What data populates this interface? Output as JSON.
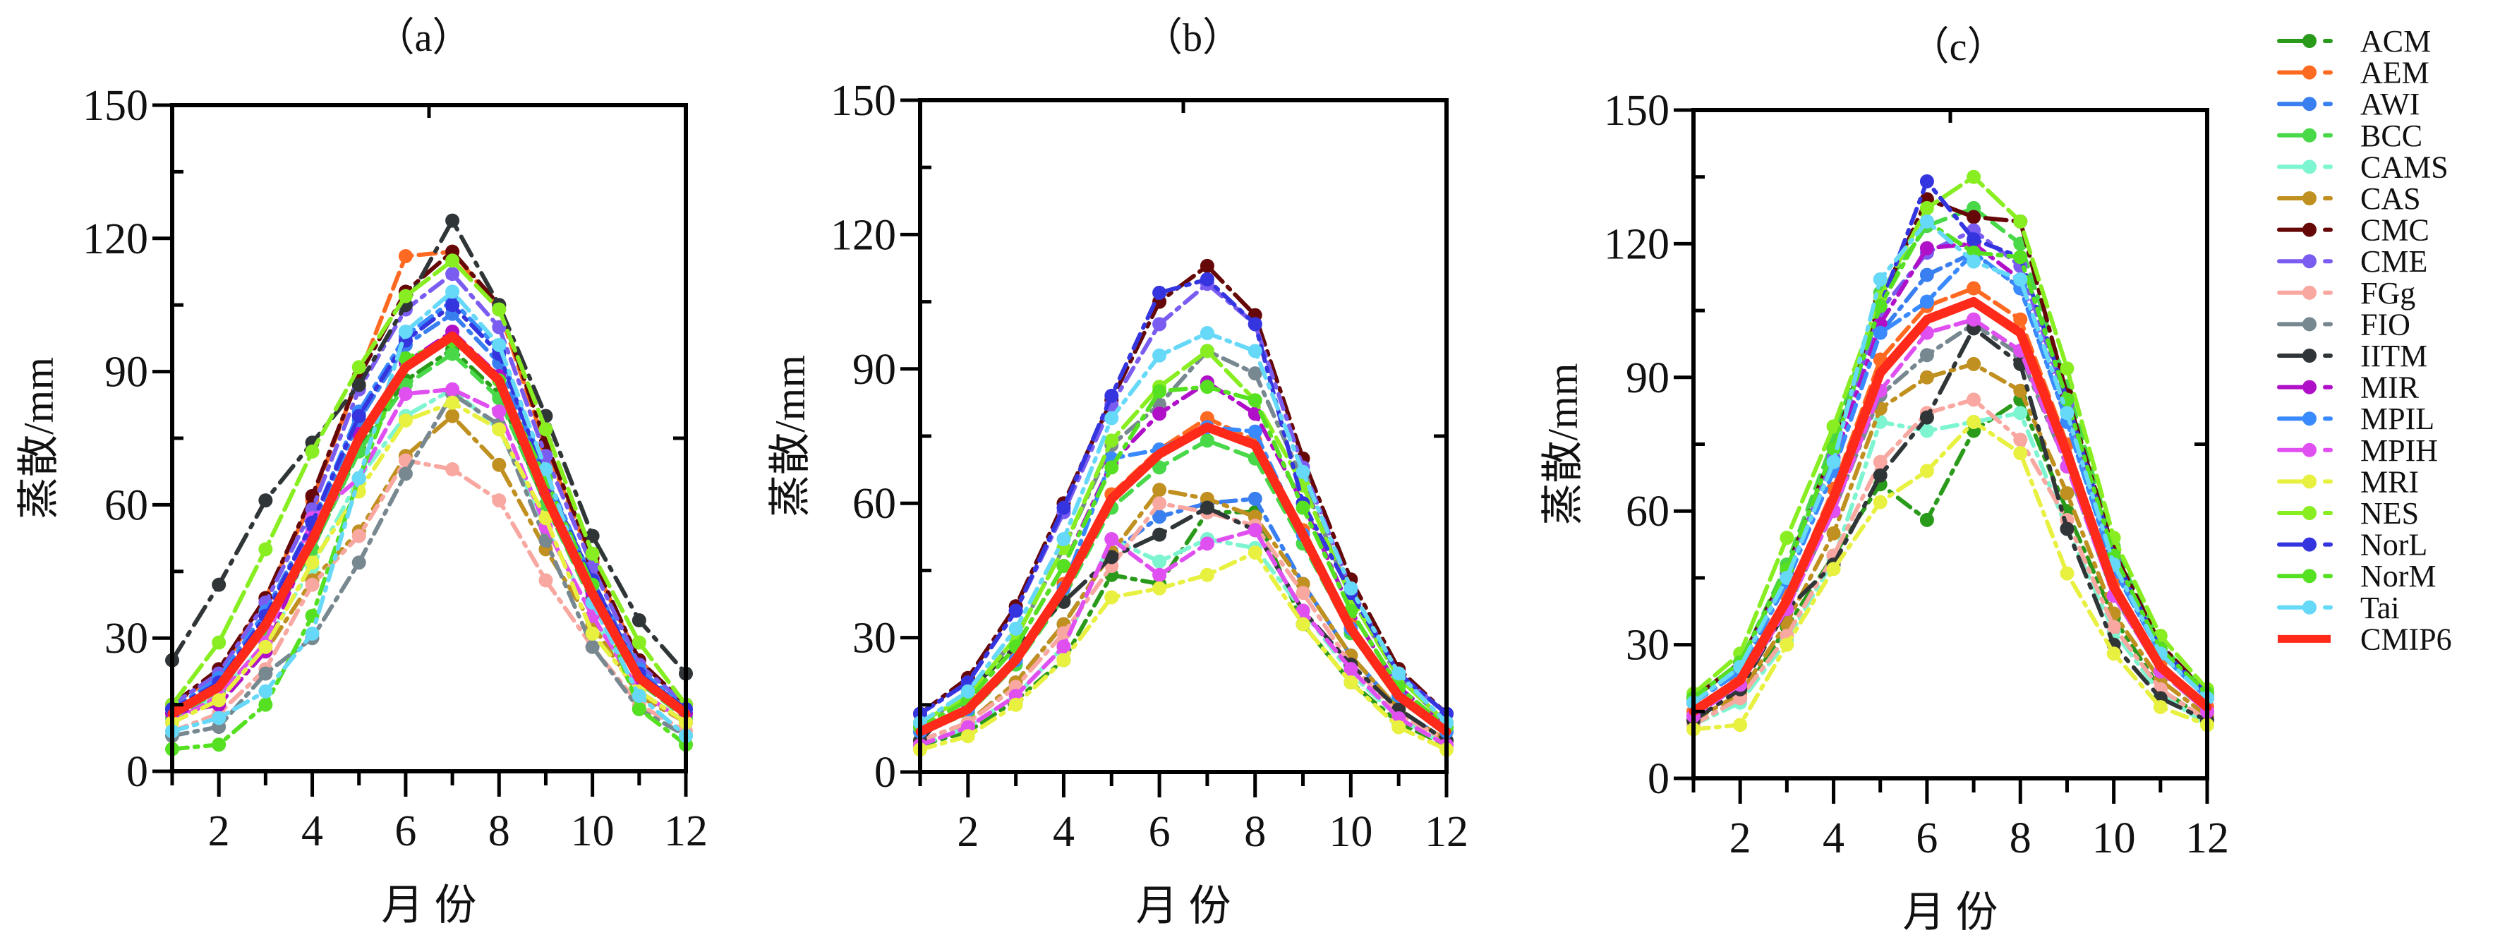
{
  "chart_data": [
    {
      "type": "line",
      "title": "（a）",
      "xlabel": "月 份",
      "ylabel": "蒸散/mm",
      "xlim": [
        1,
        12
      ],
      "ylim": [
        0,
        150
      ],
      "xticks": [
        "2",
        "4",
        "6",
        "8",
        "10",
        "12"
      ],
      "yticks": [
        "0",
        "30",
        "60",
        "90",
        "120",
        "150"
      ],
      "x": [
        1,
        2,
        3,
        4,
        5,
        6,
        7,
        8,
        9,
        10,
        11,
        12
      ],
      "series": [
        {
          "name": "ACM",
          "values": [
            13,
            18,
            32,
            50,
            73,
            88,
            95,
            85,
            60,
            39,
            20,
            13
          ]
        },
        {
          "name": "AEM",
          "values": [
            15,
            22,
            39,
            61,
            89,
            116,
            117,
            104,
            73,
            47,
            25,
            15
          ]
        },
        {
          "name": "AWI",
          "values": [
            14,
            20,
            35,
            55,
            79,
            96,
            103,
            92,
            65,
            42,
            22,
            14
          ]
        },
        {
          "name": "BCC",
          "values": [
            12,
            18,
            32,
            50,
            72,
            87,
            94,
            84,
            60,
            38,
            20,
            12
          ]
        },
        {
          "name": "CAMS",
          "values": [
            11,
            17,
            29,
            46,
            66,
            80,
            86,
            77,
            55,
            35,
            18,
            11
          ]
        },
        {
          "name": "CAS",
          "values": [
            11,
            16,
            27,
            43,
            54,
            71,
            80,
            69,
            50,
            33,
            17,
            11
          ]
        },
        {
          "name": "CMC",
          "values": [
            15,
            23,
            39,
            62,
            89,
            108,
            117,
            105,
            74,
            48,
            25,
            15
          ]
        },
        {
          "name": "CME",
          "values": [
            15,
            22,
            38,
            59,
            86,
            104,
            112,
            100,
            71,
            46,
            24,
            15
          ]
        },
        {
          "name": "FGg",
          "values": [
            9,
            13,
            23,
            42,
            53,
            70,
            68,
            61,
            43,
            28,
            15,
            9
          ]
        },
        {
          "name": "FIO",
          "values": [
            8,
            10,
            22,
            30,
            47,
            67,
            85,
            78,
            52,
            28,
            14,
            8
          ]
        },
        {
          "name": "IITM",
          "values": [
            25,
            42,
            61,
            74,
            87,
            105,
            124,
            105,
            80,
            53,
            34,
            22
          ]
        },
        {
          "name": "MIR",
          "values": [
            13,
            15,
            27,
            53,
            76,
            92,
            99,
            89,
            63,
            40,
            21,
            13
          ]
        },
        {
          "name": "MPIL",
          "values": [
            14,
            21,
            36,
            56,
            81,
            98,
            106,
            95,
            67,
            43,
            23,
            14
          ]
        },
        {
          "name": "MPIH",
          "values": [
            11,
            17,
            29,
            57,
            66,
            85,
            86,
            81,
            55,
            35,
            18,
            11
          ]
        },
        {
          "name": "MRI",
          "values": [
            11,
            16,
            28,
            47,
            63,
            79,
            83,
            77,
            57,
            31,
            18,
            11
          ]
        },
        {
          "name": "NES",
          "values": [
            15,
            29,
            50,
            72,
            91,
            107,
            115,
            104,
            77,
            49,
            29,
            15
          ]
        },
        {
          "name": "NorL",
          "values": [
            14,
            20,
            35,
            56,
            80,
            97,
            105,
            94,
            66,
            43,
            22,
            14
          ]
        },
        {
          "name": "NorM",
          "values": [
            5,
            6,
            15,
            35,
            66,
            93,
            97,
            88,
            66,
            42,
            14,
            6
          ]
        },
        {
          "name": "Tai",
          "values": [
            9,
            12,
            18,
            31,
            66,
            99,
            108,
            96,
            68,
            38,
            17,
            8
          ]
        },
        {
          "name": "CMIP6",
          "values": [
            13,
            19,
            33,
            52,
            75,
            91,
            98,
            88,
            62,
            40,
            21,
            13
          ]
        }
      ]
    },
    {
      "type": "line",
      "title": "（b）",
      "xlabel": "月 份",
      "ylabel": "蒸散/mm",
      "xlim": [
        1,
        12
      ],
      "ylim": [
        0,
        150
      ],
      "xticks": [
        "2",
        "4",
        "6",
        "8",
        "10",
        "12"
      ],
      "yticks": [
        "0",
        "30",
        "60",
        "90",
        "120",
        "150"
      ],
      "x": [
        1,
        2,
        3,
        4,
        5,
        6,
        7,
        8,
        9,
        10,
        11,
        12
      ],
      "series": [
        {
          "name": "ACM",
          "values": [
            6,
            9,
            16,
            25,
            44,
            42,
            58,
            58,
            33,
            20,
            11,
            6
          ]
        },
        {
          "name": "AEM",
          "values": [
            9,
            14,
            26,
            42,
            62,
            72,
            79,
            74,
            54,
            33,
            17,
            9
          ]
        },
        {
          "name": "AWI",
          "values": [
            7,
            11,
            20,
            33,
            49,
            57,
            60,
            61,
            42,
            26,
            14,
            7
          ]
        },
        {
          "name": "BCC",
          "values": [
            9,
            13,
            24,
            39,
            59,
            68,
            74,
            70,
            51,
            31,
            16,
            9
          ]
        },
        {
          "name": "CAMS",
          "values": [
            6,
            10,
            17,
            28,
            52,
            47,
            52,
            50,
            36,
            22,
            12,
            6
          ]
        },
        {
          "name": "CAS",
          "values": [
            7,
            11,
            20,
            33,
            49,
            63,
            61,
            57,
            42,
            26,
            14,
            7
          ]
        },
        {
          "name": "CMC",
          "values": [
            13,
            21,
            37,
            60,
            83,
            105,
            113,
            102,
            70,
            43,
            23,
            13
          ]
        },
        {
          "name": "CME",
          "values": [
            13,
            20,
            36,
            58,
            82,
            100,
            109,
            100,
            68,
            41,
            22,
            13
          ]
        },
        {
          "name": "FGg",
          "values": [
            7,
            11,
            19,
            31,
            46,
            60,
            58,
            55,
            40,
            24,
            13,
            7
          ]
        },
        {
          "name": "FIO",
          "values": [
            11,
            17,
            30,
            50,
            73,
            82,
            94,
            89,
            65,
            39,
            21,
            11
          ]
        },
        {
          "name": "IITM",
          "values": [
            7,
            18,
            28,
            38,
            48,
            53,
            59,
            54,
            36,
            24,
            14,
            7
          ]
        },
        {
          "name": "MIR",
          "values": [
            10,
            16,
            28,
            46,
            69,
            80,
            87,
            80,
            60,
            36,
            19,
            10
          ]
        },
        {
          "name": "MPIL",
          "values": [
            9,
            14,
            25,
            41,
            70,
            72,
            77,
            76,
            53,
            32,
            17,
            9
          ]
        },
        {
          "name": "MPIH",
          "values": [
            6,
            10,
            17,
            28,
            52,
            44,
            51,
            54,
            36,
            23,
            12,
            6
          ]
        },
        {
          "name": "MRI",
          "values": [
            5,
            8,
            15,
            25,
            39,
            41,
            44,
            49,
            33,
            20,
            10,
            5
          ]
        },
        {
          "name": "NES",
          "values": [
            11,
            17,
            30,
            50,
            74,
            86,
            94,
            83,
            64,
            39,
            21,
            11
          ]
        },
        {
          "name": "NorL",
          "values": [
            13,
            20,
            36,
            59,
            84,
            107,
            110,
            100,
            60,
            40,
            22,
            13
          ]
        },
        {
          "name": "NorM",
          "values": [
            10,
            16,
            28,
            46,
            68,
            85,
            86,
            83,
            59,
            36,
            19,
            10
          ]
        },
        {
          "name": "Tai",
          "values": [
            11,
            18,
            32,
            52,
            79,
            93,
            98,
            94,
            67,
            41,
            22,
            11
          ]
        },
        {
          "name": "CMIP6",
          "values": [
            9,
            14,
            25,
            41,
            61,
            71,
            77,
            73,
            53,
            32,
            17,
            9
          ]
        }
      ]
    },
    {
      "type": "line",
      "title": "（c）",
      "xlabel": "月 份",
      "ylabel": "蒸散/mm",
      "xlim": [
        1,
        12
      ],
      "ylim": [
        0,
        150
      ],
      "xticks": [
        "2",
        "4",
        "6",
        "8",
        "10",
        "12"
      ],
      "yticks": [
        "0",
        "30",
        "60",
        "90",
        "120",
        "150"
      ],
      "x": [
        1,
        2,
        3,
        4,
        5,
        6,
        7,
        8,
        9,
        10,
        11,
        12
      ],
      "series": [
        {
          "name": "ACM",
          "values": [
            12,
            18,
            34,
            50,
            66,
            58,
            78,
            85,
            60,
            36,
            20,
            13
          ]
        },
        {
          "name": "AEM",
          "values": [
            15,
            23,
            41,
            65,
            94,
            106,
            110,
            103,
            75,
            44,
            26,
            16
          ]
        },
        {
          "name": "AWI",
          "values": [
            17,
            24,
            44,
            69,
            100,
            113,
            118,
            110,
            80,
            47,
            28,
            18
          ]
        },
        {
          "name": "BCC",
          "values": [
            18,
            26,
            48,
            76,
            109,
            124,
            128,
            120,
            88,
            52,
            30,
            19
          ]
        },
        {
          "name": "CAMS",
          "values": [
            12,
            17,
            31,
            49,
            80,
            78,
            80,
            82,
            56,
            33,
            19,
            12
          ]
        },
        {
          "name": "CAS",
          "values": [
            13,
            19,
            35,
            55,
            83,
            90,
            93,
            87,
            64,
            37,
            22,
            14
          ]
        },
        {
          "name": "CMC",
          "values": [
            18,
            26,
            47,
            74,
            107,
            130,
            126,
            125,
            86,
            51,
            30,
            19
          ]
        },
        {
          "name": "CME",
          "values": [
            17,
            25,
            46,
            72,
            105,
            118,
            123,
            115,
            84,
            49,
            29,
            18
          ]
        },
        {
          "name": "FGg",
          "values": [
            12,
            18,
            32,
            50,
            71,
            82,
            85,
            76,
            58,
            34,
            20,
            13
          ]
        },
        {
          "name": "FIO",
          "values": [
            14,
            21,
            38,
            60,
            86,
            95,
            102,
            95,
            70,
            41,
            24,
            15
          ]
        },
        {
          "name": "IITM",
          "values": [
            13,
            20,
            38,
            48,
            68,
            81,
            101,
            93,
            56,
            30,
            18,
            13
          ]
        },
        {
          "name": "MIR",
          "values": [
            17,
            25,
            45,
            71,
            102,
            119,
            120,
            112,
            82,
            48,
            28,
            18
          ]
        },
        {
          "name": "MPIL",
          "values": [
            17,
            24,
            44,
            69,
            100,
            107,
            118,
            110,
            80,
            47,
            28,
            18
          ]
        },
        {
          "name": "MPIH",
          "values": [
            14,
            21,
            38,
            60,
            87,
            100,
            103,
            96,
            70,
            41,
            24,
            15
          ]
        },
        {
          "name": "MRI",
          "values": [
            11,
            12,
            30,
            47,
            62,
            69,
            80,
            73,
            46,
            28,
            16,
            12
          ]
        },
        {
          "name": "NES",
          "values": [
            19,
            28,
            54,
            79,
            108,
            128,
            135,
            125,
            92,
            54,
            32,
            20
          ]
        },
        {
          "name": "NorL",
          "values": [
            18,
            26,
            47,
            74,
            106,
            134,
            121,
            117,
            85,
            50,
            29,
            19
          ]
        },
        {
          "name": "NorM",
          "values": [
            18,
            26,
            47,
            74,
            106,
            125,
            118,
            117,
            85,
            50,
            29,
            19
          ]
        },
        {
          "name": "Tai",
          "values": [
            17,
            25,
            45,
            71,
            112,
            125,
            116,
            112,
            82,
            48,
            28,
            18
          ]
        },
        {
          "name": "CMIP6",
          "values": [
            15,
            22,
            40,
            63,
            91,
            103,
            107,
            100,
            73,
            43,
            25,
            16
          ]
        }
      ]
    }
  ],
  "legend": {
    "placement": "right",
    "items": [
      "ACM",
      "AEM",
      "AWI",
      "BCC",
      "CAMS",
      "CAS",
      "CMC",
      "CME",
      "FGg",
      "FIO",
      "IITM",
      "MIR",
      "MPIL",
      "MPIH",
      "MRI",
      "NES",
      "NorL",
      "NorM",
      "Tai",
      "CMIP6"
    ]
  },
  "colors": {
    "ACM": "#2a9a1a",
    "AEM": "#ff6a22",
    "AWI": "#3a7ff0",
    "BCC": "#48d848",
    "CAMS": "#7cf5d0",
    "CAS": "#c09020",
    "CMC": "#660808",
    "CME": "#7b5cf0",
    "FGg": "#f8a8a0",
    "FIO": "#788890",
    "IITM": "#303538",
    "MIR": "#b010c8",
    "MPIL": "#3a8aff",
    "MPIH": "#e050f0",
    "MRI": "#e8f040",
    "NES": "#88ee22",
    "NorL": "#3535e0",
    "NorM": "#55e022",
    "Tai": "#66d8f8",
    "CMIP6": "#ff2a1a"
  }
}
